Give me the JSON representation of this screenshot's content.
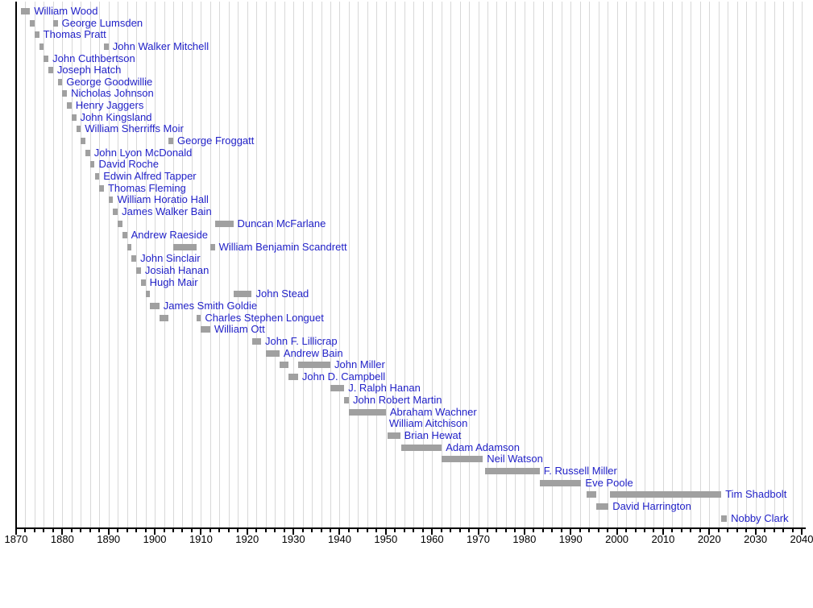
{
  "colors": {
    "bar": "#a0a0a0",
    "label": "#2222c8",
    "grid": "#d8d8d8",
    "axis": "#000000",
    "background": "#ffffff"
  },
  "chart_data": {
    "type": "bar",
    "variant": "gantt-timeline",
    "description": "Timeline of mayoral terms; each row is a person, gray bars mark term(s) in office",
    "x_axis": {
      "min": 1870,
      "max": 2040,
      "major_tick_step": 10,
      "minor_tick_step": 2,
      "grid": true,
      "tick_labels": [
        "1870",
        "1880",
        "1890",
        "1900",
        "1910",
        "1920",
        "1930",
        "1940",
        "1950",
        "1960",
        "1970",
        "1980",
        "1990",
        "2000",
        "2010",
        "2020",
        "2030",
        "2040"
      ]
    },
    "series": [
      {
        "name": "William Wood",
        "terms": [
          [
            1871,
            1873
          ]
        ]
      },
      {
        "name": "George Lumsden",
        "terms": [
          [
            1873,
            1874
          ],
          [
            1878,
            1879
          ]
        ]
      },
      {
        "name": "Thomas Pratt",
        "terms": [
          [
            1874,
            1875
          ]
        ]
      },
      {
        "name": "John Walker Mitchell",
        "terms": [
          [
            1875,
            1876
          ],
          [
            1889,
            1890
          ]
        ]
      },
      {
        "name": "John Cuthbertson",
        "terms": [
          [
            1876,
            1877
          ]
        ]
      },
      {
        "name": "Joseph Hatch",
        "terms": [
          [
            1877,
            1878
          ]
        ]
      },
      {
        "name": "George Goodwillie",
        "terms": [
          [
            1879,
            1880
          ]
        ]
      },
      {
        "name": "Nicholas Johnson",
        "terms": [
          [
            1880,
            1881
          ]
        ]
      },
      {
        "name": "Henry Jaggers",
        "terms": [
          [
            1881,
            1882
          ]
        ]
      },
      {
        "name": "John Kingsland",
        "terms": [
          [
            1882,
            1883
          ]
        ]
      },
      {
        "name": "William Sherriffs Moir",
        "terms": [
          [
            1883,
            1884
          ]
        ]
      },
      {
        "name": "George Froggatt",
        "terms": [
          [
            1884,
            1885
          ],
          [
            1903,
            1904
          ]
        ]
      },
      {
        "name": "John Lyon McDonald",
        "terms": [
          [
            1885,
            1886
          ]
        ]
      },
      {
        "name": "David Roche",
        "terms": [
          [
            1886,
            1887
          ]
        ]
      },
      {
        "name": "Edwin Alfred Tapper",
        "terms": [
          [
            1887,
            1888
          ]
        ]
      },
      {
        "name": "Thomas Fleming",
        "terms": [
          [
            1888,
            1889
          ]
        ]
      },
      {
        "name": "William Horatio Hall",
        "terms": [
          [
            1890,
            1891
          ]
        ]
      },
      {
        "name": "James Walker Bain",
        "terms": [
          [
            1891,
            1892
          ]
        ]
      },
      {
        "name": "Duncan McFarlane",
        "terms": [
          [
            1892,
            1893
          ],
          [
            1913,
            1917
          ]
        ]
      },
      {
        "name": "Andrew Raeside",
        "terms": [
          [
            1893,
            1894
          ]
        ]
      },
      {
        "name": "William Benjamin Scandrett",
        "terms": [
          [
            1894,
            1895
          ],
          [
            1904,
            1909
          ],
          [
            1912,
            1913
          ]
        ]
      },
      {
        "name": "John Sinclair",
        "terms": [
          [
            1895,
            1896
          ]
        ]
      },
      {
        "name": "Josiah Hanan",
        "terms": [
          [
            1896,
            1897
          ]
        ]
      },
      {
        "name": "Hugh Mair",
        "terms": [
          [
            1897,
            1898
          ]
        ]
      },
      {
        "name": "John Stead",
        "terms": [
          [
            1898,
            1899
          ],
          [
            1917,
            1921
          ]
        ]
      },
      {
        "name": "James Smith Goldie",
        "terms": [
          [
            1899,
            1901
          ]
        ]
      },
      {
        "name": "Charles Stephen Longuet",
        "terms": [
          [
            1901,
            1903
          ],
          [
            1909,
            1910
          ]
        ]
      },
      {
        "name": "William Ott",
        "terms": [
          [
            1910,
            1912
          ]
        ]
      },
      {
        "name": "John F. Lillicrap",
        "terms": [
          [
            1921,
            1923
          ]
        ]
      },
      {
        "name": "Andrew Bain",
        "terms": [
          [
            1924,
            1927
          ]
        ]
      },
      {
        "name": "John Miller",
        "terms": [
          [
            1927,
            1929
          ],
          [
            1931,
            1938
          ]
        ]
      },
      {
        "name": "John D. Campbell",
        "terms": [
          [
            1929,
            1931
          ]
        ]
      },
      {
        "name": "J. Ralph Hanan",
        "terms": [
          [
            1938,
            1941
          ]
        ]
      },
      {
        "name": "John Robert Martin",
        "terms": [
          [
            1941,
            1942
          ]
        ]
      },
      {
        "name": "Abraham Wachner",
        "terms": [
          [
            1942,
            1950
          ]
        ]
      },
      {
        "name": "William Aitchison",
        "terms": [],
        "label_year": 1950.7
      },
      {
        "name": "Brian Hewat",
        "terms": [
          [
            1950.4,
            1953.1
          ]
        ]
      },
      {
        "name": "Adam Adamson",
        "terms": [
          [
            1953.4,
            1962.1
          ]
        ]
      },
      {
        "name": "Neil Watson",
        "terms": [
          [
            1962.1,
            1971
          ]
        ]
      },
      {
        "name": "F. Russell Miller",
        "terms": [
          [
            1971.4,
            1983.3
          ]
        ]
      },
      {
        "name": "Eve Poole",
        "terms": [
          [
            1983.3,
            1992.3
          ]
        ]
      },
      {
        "name": "Tim Shadbolt",
        "terms": [
          [
            1993.5,
            1995.5
          ],
          [
            1998.5,
            2022.6
          ]
        ]
      },
      {
        "name": "David Harrington",
        "terms": [
          [
            1995.5,
            1998.2
          ]
        ]
      },
      {
        "name": "Nobby Clark",
        "terms": [
          [
            2022.6,
            2023.8
          ]
        ]
      }
    ]
  }
}
